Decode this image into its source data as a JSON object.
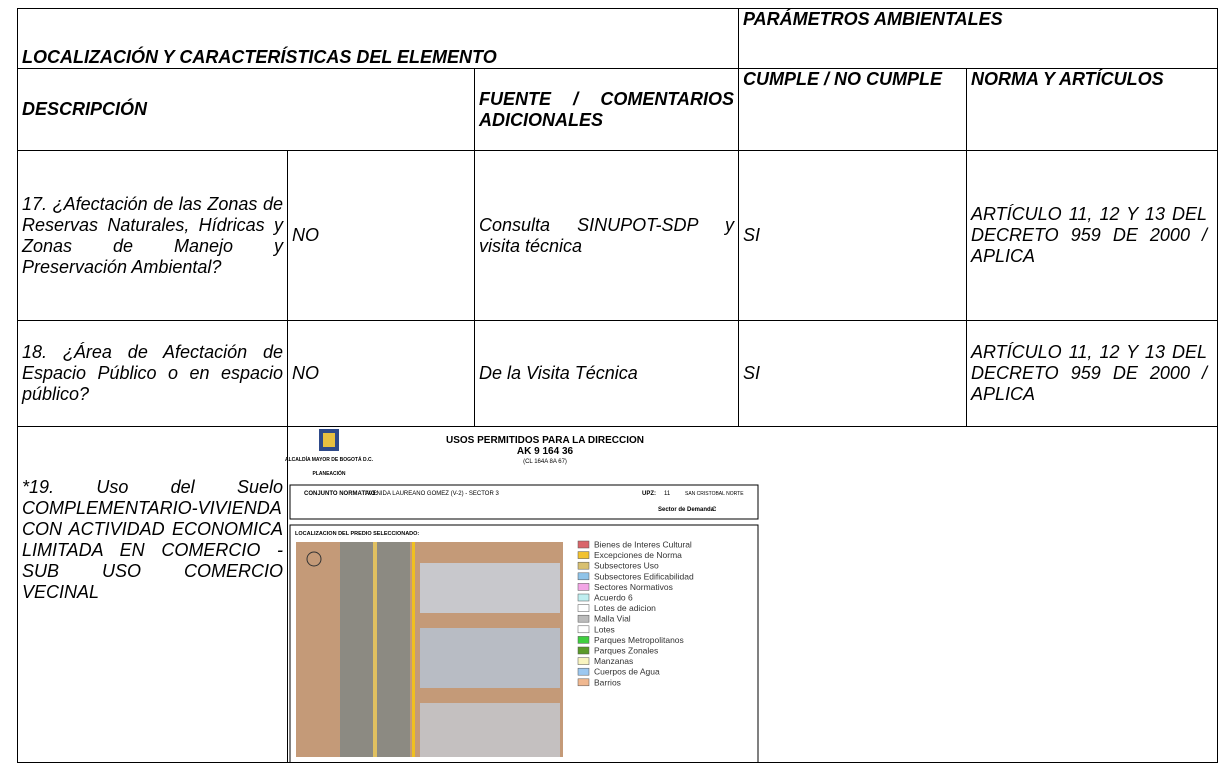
{
  "header": {
    "left_title": "LOCALIZACIÓN Y CARACTERÍSTICAS DEL ELEMENTO",
    "right_title": "PARÁMETROS AMBIENTALES"
  },
  "columns": [
    "DESCRIPCIÓN",
    "FUENTE / COMENTARIOS ADICIONALES",
    "CUMPLE / NO CUMPLE",
    "NORMA Y ARTÍCULOS"
  ],
  "rows": [
    [
      "17. ¿Afectación de las Zonas de Reservas Naturales, Hídricas y Zonas de Manejo y Preservación Ambiental?",
      "NO",
      "Consulta SINUPOT-SDP y visita técnica",
      "SI",
      "ARTÍCULO 11, 12 Y 13 DEL DECRETO 959 DE 2000 / APLICA"
    ],
    [
      "18. ¿Área de Afectación de Espacio Público o en espacio público?",
      "NO",
      "De la Visita Técnica",
      "SI",
      "ARTÍCULO 11, 12 Y 13 DEL DECRETO 959 DE 2000 / APLICA"
    ],
    [
      "*19. Uso del Suelo COMPLEMENTARIO-VIVIENDA CON ACTIVIDAD ECONOMICA LIMITADA EN COMERCIO - SUB USO COMERCIO VECINAL"
    ]
  ],
  "image": {
    "logo_text": "ALCALDÍA MAYOR DE BOGOTÁ D.C.",
    "logo_subtext": "PLANEACIÓN",
    "title": "USOS PERMITIDOS PARA LA DIRECCION",
    "address": "AK 9 164 36",
    "alt_address": "(CL 164A 8A 67)",
    "conjunto_label": "CONJUNTO NORMATIVO:",
    "conjunto_value": "AVENIDA LAUREANO GOMEZ (V-2) - SECTOR 3",
    "upz_label": "UPZ:",
    "upz_number": "11",
    "upz_name": "SAN CRISTOBAL NORTE",
    "demand_label": "Sector de Demanda:",
    "demand_value": "C",
    "map_label": "LOCALIZACION DEL PREDIO SELECCIONADO:",
    "legend": [
      {
        "name": "Bienes de Interes Cultural",
        "color": "#d9666b"
      },
      {
        "name": "Excepciones de Norma",
        "color": "#f2c230"
      },
      {
        "name": "Subsectores Uso",
        "color": "#d8c070"
      },
      {
        "name": "Subsectores Edificabilidad",
        "color": "#8fc3e8"
      },
      {
        "name": "Sectores Normativos",
        "color": "#f3a6e6"
      },
      {
        "name": "Acuerdo 6",
        "color": "#bfeef0"
      },
      {
        "name": "Lotes de adicion",
        "color": "#ffffff"
      },
      {
        "name": "Malla Vial",
        "color": "#bbbbbb"
      },
      {
        "name": "Lotes",
        "color": "#ffffff"
      },
      {
        "name": "Parques Metropolitanos",
        "color": "#3fcf3f"
      },
      {
        "name": "Parques Zonales",
        "color": "#5a9a2a"
      },
      {
        "name": "Manzanas",
        "color": "#f8f4c0"
      },
      {
        "name": "Cuerpos de Agua",
        "color": "#9cc8f0"
      },
      {
        "name": "Barrios",
        "color": "#f0b890"
      }
    ]
  }
}
